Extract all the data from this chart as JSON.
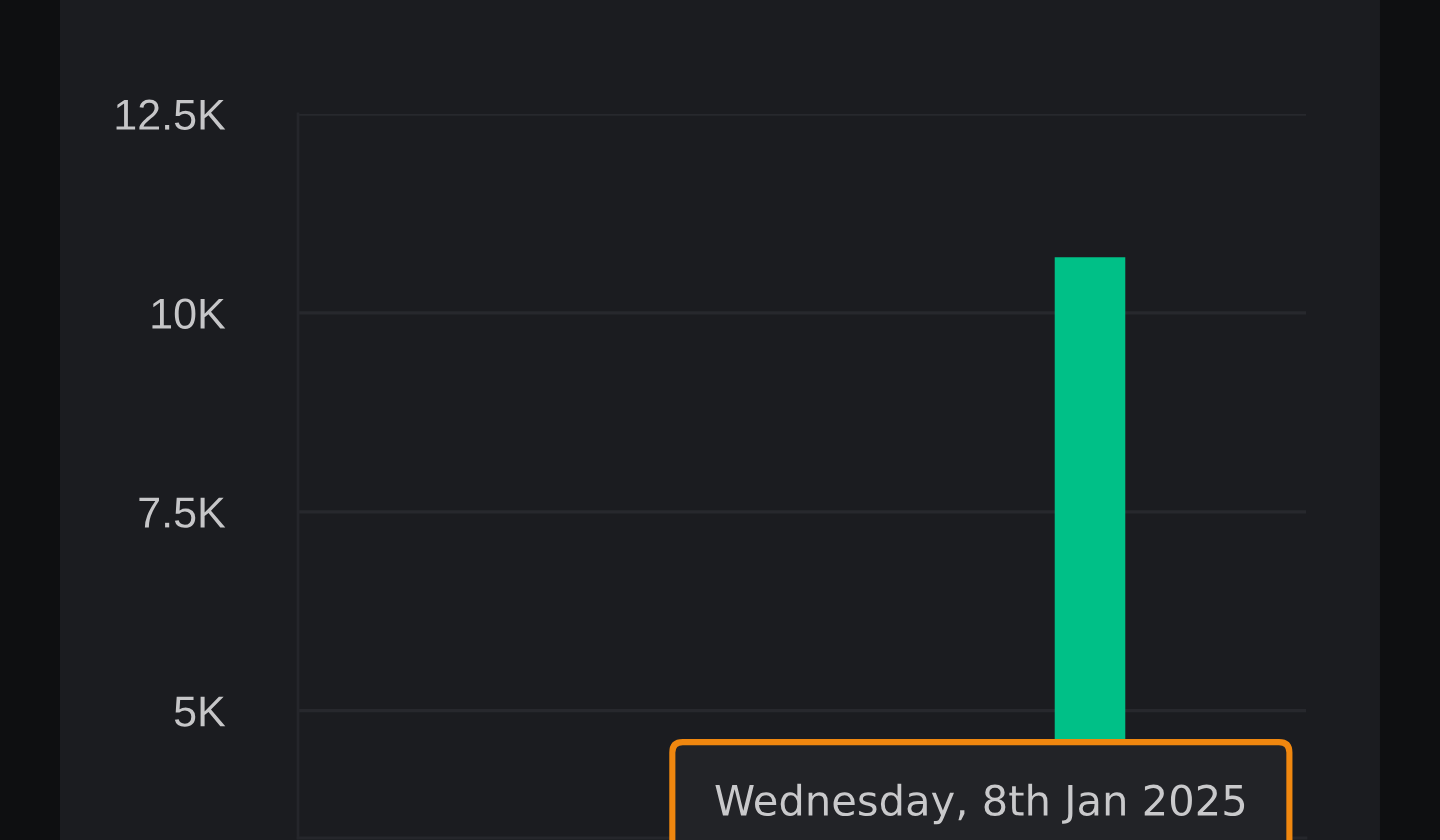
{
  "chart_data": {
    "type": "bar",
    "categories": [
      null,
      null,
      null,
      null,
      null,
      null,
      null
    ],
    "values": [
      null,
      null,
      null,
      null,
      null,
      10700,
      null
    ],
    "color": "#00c087",
    "ylim": [
      3400,
      12500
    ],
    "yticks": [
      {
        "value": 5000,
        "label": "5K"
      },
      {
        "value": 7500,
        "label": "7.5K"
      },
      {
        "value": 10000,
        "label": "10K"
      },
      {
        "value": 12500,
        "label": "12.5K"
      }
    ],
    "grid": "y",
    "tick_labels": "y",
    "annotations": [
      "Wednesday, 8th Jan 2025"
    ]
  }
}
